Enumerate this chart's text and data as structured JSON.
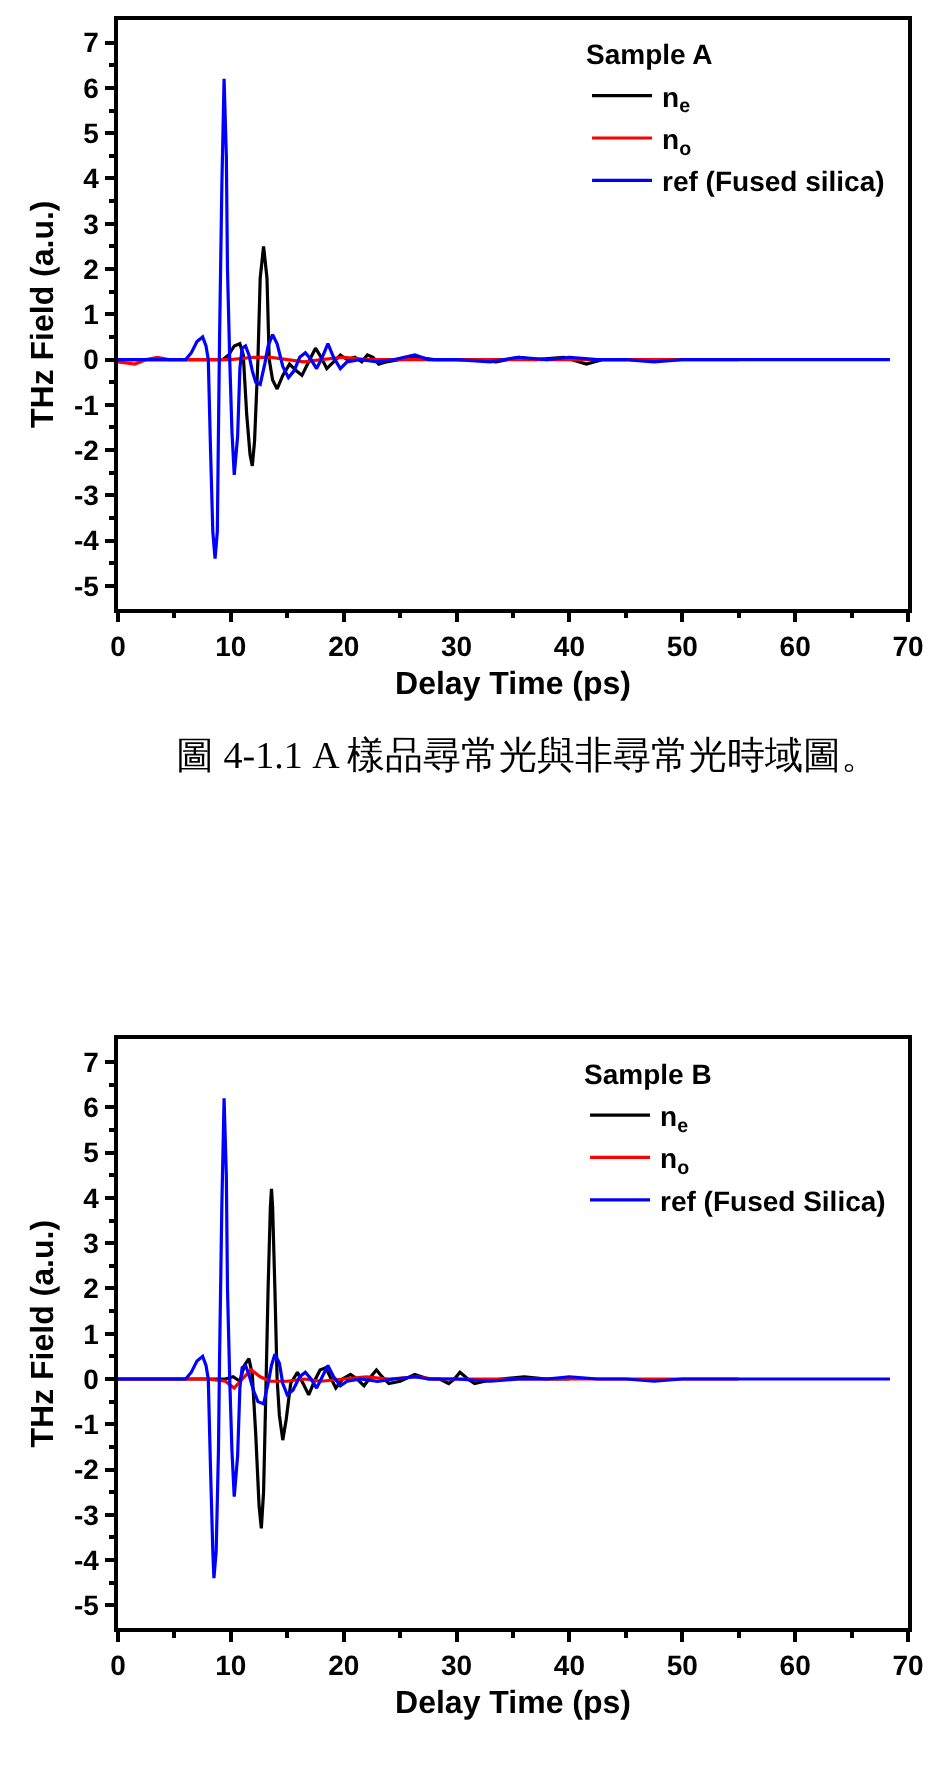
{
  "chart_data": [
    {
      "type": "line",
      "xlabel": "Delay Time (ps)",
      "ylabel": "THz Field (a.u.)",
      "legend_title": "Sample A",
      "legend": "top right",
      "xlim": [
        0,
        70
      ],
      "ylim": [
        -5.5,
        7.5
      ],
      "xticks": [
        0,
        {
          "value": 5,
          "label": null
        },
        10,
        {
          "value": 15,
          "label": null
        },
        20,
        {
          "value": 25,
          "label": null
        },
        30,
        {
          "value": 35,
          "label": null
        },
        40,
        {
          "value": 45,
          "label": null
        },
        50,
        {
          "value": 55,
          "label": null
        },
        60,
        {
          "value": 65,
          "label": null
        },
        70
      ],
      "yticks": [
        -5,
        {
          "value": -4.5,
          "label": null
        },
        -4,
        {
          "value": -3.5,
          "label": null
        },
        -3,
        {
          "value": -2.5,
          "label": null
        },
        -2,
        {
          "value": -1.5,
          "label": null
        },
        -1,
        {
          "value": -0.5,
          "label": null
        },
        0,
        {
          "value": 0.5,
          "label": null
        },
        1,
        {
          "value": 1.5,
          "label": null
        },
        2,
        {
          "value": 2.5,
          "label": null
        },
        3,
        {
          "value": 3.5,
          "label": null
        },
        4,
        {
          "value": 4.5,
          "label": null
        },
        5,
        {
          "value": 5.5,
          "label": null
        },
        6,
        {
          "value": 6.5,
          "label": null
        },
        7
      ],
      "series": [
        {
          "name": "n$_{e}$",
          "color": "#000000",
          "x": [
            0,
            3,
            6,
            9.3,
            9.8,
            10.3,
            10.8,
            11.1,
            11.4,
            11.7,
            11.9,
            12.1,
            12.4,
            12.6,
            12.9,
            13.2,
            13.4,
            13.7,
            14.1,
            14.6,
            15.2,
            15.8,
            16.3,
            16.9,
            17.5,
            18.0,
            18.5,
            19.1,
            19.7,
            20.3,
            21.0,
            21.6,
            22.1,
            22.6,
            23.1,
            23.8,
            25,
            26.5,
            28,
            30,
            32,
            33.5,
            35.5,
            37,
            39.5,
            41.5,
            43,
            45
          ],
          "values": [
            0,
            0,
            0,
            0,
            0.1,
            0.3,
            0.35,
            0.1,
            -1.2,
            -2.1,
            -2.35,
            -1.8,
            0,
            1.8,
            2.5,
            1.8,
            0,
            -0.45,
            -0.65,
            -0.35,
            -0.1,
            -0.25,
            -0.35,
            -0.05,
            0.25,
            0.05,
            -0.2,
            -0.05,
            0.1,
            0,
            0.05,
            -0.05,
            0.1,
            0.05,
            -0.1,
            -0.05,
            0,
            0.05,
            0,
            0,
            0,
            -0.05,
            0.05,
            0,
            0.05,
            -0.1,
            0,
            0
          ]
        },
        {
          "name": "n$_{o}$",
          "color": "#ff0000",
          "x": [
            0,
            1.5,
            2.5,
            3.5,
            4.5,
            6,
            8,
            10,
            12,
            13.5,
            15,
            16.5,
            18,
            20,
            22,
            25,
            28,
            30,
            35,
            40,
            45,
            50,
            55
          ],
          "values": [
            -0.05,
            -0.1,
            0,
            0.05,
            0,
            0,
            0,
            0,
            0.05,
            0.05,
            0,
            -0.05,
            0,
            0.05,
            0,
            0,
            0,
            0,
            0,
            0,
            0,
            0,
            0
          ]
        },
        {
          "name": "ref (Fused silica)",
          "color": "#0000ff",
          "x": [
            0,
            3,
            6,
            6.5,
            7,
            7.5,
            7.8,
            8.0,
            8.2,
            8.4,
            8.6,
            8.8,
            8.9,
            9.0,
            9.2,
            9.4,
            9.6,
            9.7,
            9.9,
            10.1,
            10.3,
            10.6,
            10.8,
            11.0,
            11.3,
            11.6,
            11.9,
            12.2,
            12.6,
            13.0,
            13.3,
            13.7,
            14.1,
            14.6,
            15.1,
            15.6,
            16.1,
            16.6,
            17.1,
            17.6,
            18.1,
            18.6,
            19.1,
            19.7,
            20.3,
            21.5,
            23,
            24.5,
            26.3,
            27.5,
            30,
            33,
            35.5,
            38,
            40,
            42.5,
            45,
            47.5,
            50,
            52.5,
            55,
            57.5,
            60,
            62.5,
            65,
            68.4
          ],
          "values": [
            0,
            0,
            0,
            0.15,
            0.4,
            0.5,
            0.3,
            0,
            -2.0,
            -3.8,
            -4.4,
            -3.8,
            -1.6,
            0.5,
            3.8,
            6.2,
            4.5,
            2.0,
            0,
            -1.6,
            -2.55,
            -1.7,
            -0.2,
            0.25,
            0.3,
            0.1,
            -0.25,
            -0.5,
            -0.55,
            -0.1,
            0.3,
            0.55,
            0.35,
            -0.15,
            -0.4,
            -0.25,
            0.05,
            0.15,
            0,
            -0.2,
            0.05,
            0.35,
            0.05,
            -0.2,
            -0.05,
            0,
            -0.05,
            0,
            0.1,
            0,
            0,
            -0.05,
            0.05,
            0,
            0.05,
            0,
            0,
            -0.05,
            0,
            0,
            0,
            0,
            0,
            0,
            0,
            0
          ]
        }
      ],
      "annotations": [
        "圖 4-1.1 A 樣品尋常光與非尋常光時域圖。"
      ]
    },
    {
      "type": "line",
      "xlabel": "Delay Time (ps)",
      "ylabel": "THz Field (a.u.)",
      "legend_title": "Sample B",
      "legend": "top right",
      "xlim": [
        0,
        70
      ],
      "ylim": [
        -5.5,
        7.5
      ],
      "xticks": [
        0,
        {
          "value": 5,
          "label": null
        },
        10,
        {
          "value": 15,
          "label": null
        },
        20,
        {
          "value": 25,
          "label": null
        },
        30,
        {
          "value": 35,
          "label": null
        },
        40,
        {
          "value": 45,
          "label": null
        },
        50,
        {
          "value": 55,
          "label": null
        },
        60,
        {
          "value": 65,
          "label": null
        },
        70
      ],
      "yticks": [
        -5,
        {
          "value": -4.5,
          "label": null
        },
        -4,
        {
          "value": -3.5,
          "label": null
        },
        -3,
        {
          "value": -2.5,
          "label": null
        },
        -2,
        {
          "value": -1.5,
          "label": null
        },
        -1,
        {
          "value": -0.5,
          "label": null
        },
        0,
        {
          "value": 0.5,
          "label": null
        },
        1,
        {
          "value": 1.5,
          "label": null
        },
        2,
        {
          "value": 2.5,
          "label": null
        },
        3,
        {
          "value": 3.5,
          "label": null
        },
        4,
        {
          "value": 4.5,
          "label": null
        },
        5,
        {
          "value": 5.5,
          "label": null
        },
        6,
        {
          "value": 6.5,
          "label": null
        },
        7
      ],
      "series": [
        {
          "name": "n$_{e}$",
          "color": "#000000",
          "x": [
            0,
            3,
            6,
            9.5,
            10.2,
            10.8,
            11.2,
            11.6,
            11.9,
            12.2,
            12.5,
            12.7,
            12.9,
            13.1,
            13.3,
            13.5,
            13.6,
            13.7,
            13.9,
            14.1,
            14.3,
            14.6,
            14.9,
            15.3,
            15.9,
            16.4,
            16.9,
            17.4,
            17.9,
            18.4,
            18.9,
            19.3,
            19.9,
            20.6,
            21.2,
            21.8,
            22.4,
            22.9,
            23.4,
            24.0,
            25.0,
            26.3,
            27.5,
            28.5,
            29.3,
            29.8,
            30.3,
            31.0,
            31.6,
            32.5,
            34,
            36,
            38,
            40
          ],
          "values": [
            0,
            0,
            0,
            0,
            0.05,
            -0.05,
            0.3,
            0.45,
            0.1,
            -1.2,
            -2.8,
            -3.3,
            -2.5,
            -0.3,
            2.0,
            3.8,
            4.2,
            3.8,
            2.0,
            0,
            -0.8,
            -1.35,
            -0.9,
            -0.1,
            0.15,
            -0.1,
            -0.35,
            -0.05,
            0.2,
            0.25,
            0,
            -0.2,
            0,
            0.1,
            0,
            -0.15,
            0.05,
            0.2,
            0.05,
            -0.1,
            -0.05,
            0.1,
            0,
            0,
            -0.1,
            0,
            0.15,
            0,
            -0.1,
            -0.05,
            0,
            0.05,
            0,
            0
          ]
        },
        {
          "name": "n$_{o}$",
          "color": "#ff0000",
          "x": [
            0,
            5,
            8,
            9.5,
            10.3,
            11.0,
            11.8,
            12.6,
            13.5,
            15,
            16.5,
            18,
            20,
            22,
            24,
            26.5,
            28,
            30,
            35,
            40,
            45,
            50,
            55
          ],
          "values": [
            0,
            0,
            0,
            -0.05,
            -0.2,
            0,
            0.2,
            0.05,
            -0.05,
            -0.05,
            0,
            -0.05,
            0,
            0.05,
            0,
            0.05,
            0,
            0,
            0,
            0,
            0,
            0,
            0
          ]
        },
        {
          "name": "ref (Fused Silica)",
          "color": "#0000ff",
          "x": [
            0,
            3,
            6,
            6.5,
            7,
            7.5,
            7.8,
            8.0,
            8.2,
            8.4,
            8.5,
            8.7,
            8.9,
            9.0,
            9.2,
            9.4,
            9.6,
            9.7,
            9.9,
            10.1,
            10.3,
            10.6,
            10.8,
            11.0,
            11.3,
            11.6,
            12.0,
            12.4,
            12.9,
            13.3,
            13.6,
            13.9,
            14.3,
            14.6,
            15.0,
            15.5,
            16.1,
            16.6,
            17.1,
            17.6,
            18.1,
            18.6,
            19.1,
            19.7,
            20.3,
            21.5,
            23,
            24.5,
            26.3,
            27.5,
            30,
            33,
            35.5,
            38,
            40,
            42.5,
            45,
            47.5,
            50,
            52.5,
            55,
            57.5,
            60,
            62.5,
            65,
            68.4
          ],
          "values": [
            0,
            0,
            0,
            0.15,
            0.4,
            0.5,
            0.3,
            0,
            -2.0,
            -3.8,
            -4.4,
            -3.8,
            -1.6,
            0.5,
            3.8,
            6.2,
            4.5,
            2.0,
            0,
            -1.6,
            -2.6,
            -1.7,
            -0.2,
            0.25,
            0.3,
            0.1,
            -0.25,
            -0.5,
            -0.55,
            -0.1,
            0.3,
            0.55,
            0.35,
            -0.1,
            -0.35,
            -0.25,
            0.05,
            0.15,
            0,
            -0.2,
            0.05,
            0.3,
            0.05,
            -0.15,
            -0.05,
            0,
            -0.05,
            0,
            0.05,
            0,
            0,
            -0.05,
            0,
            0,
            0.05,
            0,
            0,
            -0.05,
            0,
            0,
            0,
            0,
            0,
            0,
            0,
            0
          ]
        }
      ]
    }
  ]
}
